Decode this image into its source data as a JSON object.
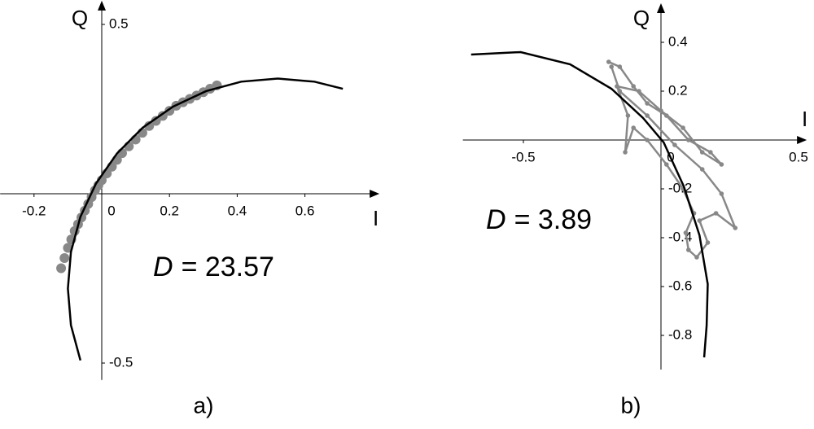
{
  "chart_data": [
    {
      "type": "scatter",
      "x_label": "I",
      "y_label": "Q",
      "annotation": {
        "symbol": "D",
        "text": "= 23.57"
      },
      "caption": "a)",
      "xlim": [
        -0.3,
        0.82
      ],
      "ylim": [
        -0.55,
        0.57
      ],
      "xticks": [
        -0.2,
        0,
        0.2,
        0.4,
        0.6
      ],
      "yticks": [
        -0.5,
        0.5
      ],
      "series": [
        {
          "color": "#888888",
          "connected": false,
          "x": [
            -0.12,
            -0.11,
            -0.1,
            -0.09,
            -0.08,
            -0.07,
            -0.06,
            -0.05,
            -0.04,
            -0.03,
            -0.02,
            -0.01,
            0,
            0.015,
            0.03,
            0.045,
            0.06,
            0.08,
            0.1,
            0.12,
            0.14,
            0.16,
            0.18,
            0.2,
            0.22,
            0.24,
            0.26,
            0.28,
            0.3,
            0.32,
            0.34
          ],
          "y": [
            -0.22,
            -0.19,
            -0.16,
            -0.135,
            -0.11,
            -0.09,
            -0.07,
            -0.05,
            -0.03,
            -0.01,
            0.01,
            0.025,
            0.04,
            0.06,
            0.08,
            0.1,
            0.12,
            0.14,
            0.16,
            0.18,
            0.2,
            0.215,
            0.23,
            0.245,
            0.26,
            0.27,
            0.28,
            0.29,
            0.3,
            0.31,
            0.32
          ]
        }
      ],
      "curve": {
        "color": "#000000",
        "x": [
          -0.063,
          -0.091,
          -0.1,
          -0.091,
          -0.063,
          -0.017,
          0.045,
          0.121,
          0.21,
          0.308,
          0.412,
          0.52,
          0.628,
          0.712
        ],
        "y": [
          -0.492,
          -0.388,
          -0.28,
          -0.172,
          -0.068,
          0.03,
          0.119,
          0.195,
          0.257,
          0.303,
          0.331,
          0.34,
          0.331,
          0.31
        ]
      }
    },
    {
      "type": "scatter",
      "x_label": "I",
      "y_label": "Q",
      "annotation": {
        "symbol": "D",
        "text": "= 3.89"
      },
      "caption": "b)",
      "xlim": [
        -0.72,
        0.53
      ],
      "ylim": [
        -0.94,
        0.56
      ],
      "xticks": [
        -0.5,
        0,
        0.5
      ],
      "yticks": [
        -0.8,
        -0.6,
        -0.4,
        -0.2,
        0.2,
        0.4
      ],
      "series": [
        {
          "color": "#888888",
          "connected": true,
          "x": [
            -0.19,
            -0.15,
            -0.1,
            -0.05,
            0.02,
            0.1,
            0.18,
            0.22,
            0.15,
            0.08,
            0,
            -0.08,
            -0.16,
            -0.12,
            -0.13,
            -0.1,
            -0.05,
            0.02,
            0.08,
            0.12,
            0.09,
            0.1,
            0.13,
            0.17,
            0.14,
            0.2,
            0.27,
            0.22,
            0.15,
            0.05,
            -0.05,
            -0.15,
            -0.18
          ],
          "y": [
            0.32,
            0.3,
            0.22,
            0.15,
            0.1,
            0,
            -0.05,
            -0.1,
            -0.05,
            0.05,
            0.12,
            0.2,
            0.22,
            0.1,
            -0.05,
            0.05,
            0,
            -0.1,
            -0.2,
            -0.3,
            -0.38,
            -0.45,
            -0.48,
            -0.42,
            -0.33,
            -0.3,
            -0.36,
            -0.22,
            -0.12,
            -0.02,
            0.1,
            0.2,
            0.3
          ]
        }
      ],
      "curve": {
        "color": "#000000",
        "x": [
          -0.69,
          -0.51,
          -0.33,
          -0.18,
          -0.065,
          0.01,
          0.083,
          0.14,
          0.17,
          0.166,
          0.157
        ],
        "y": [
          0.35,
          0.36,
          0.31,
          0.21,
          0.09,
          -0.01,
          -0.19,
          -0.39,
          -0.59,
          -0.76,
          -0.89
        ]
      }
    }
  ]
}
